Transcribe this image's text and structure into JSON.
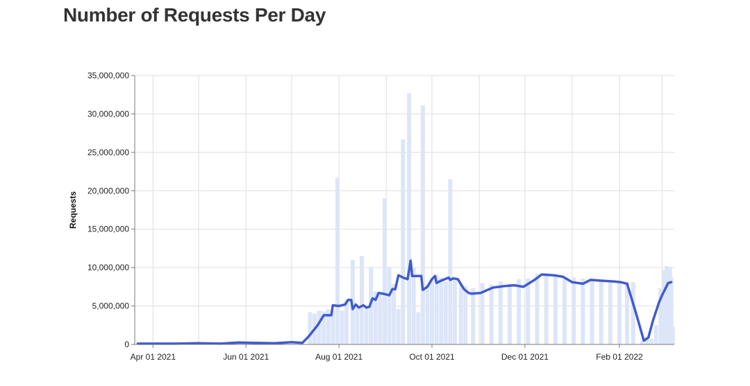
{
  "page": {
    "title": "Number of Requests Per Day"
  },
  "colors": {
    "line": "#3f5bcf",
    "bars": "#dde5f8",
    "grid": "#dddddd",
    "axis": "#777777"
  },
  "chart_data": {
    "type": "bar",
    "title": "Number of Requests Per Day",
    "xlabel": "",
    "ylabel": "Requests",
    "ylim": [
      0,
      35000000
    ],
    "xlim": [
      "2021-03-20",
      "2022-03-09"
    ],
    "y_ticks": [
      0,
      5000000,
      10000000,
      15000000,
      20000000,
      25000000,
      30000000,
      35000000
    ],
    "y_tick_labels": [
      "0",
      "5,000,000",
      "10,000,000",
      "15,000,000",
      "20,000,000",
      "25,000,000",
      "30,000,000",
      "35,000,000"
    ],
    "x_ticks": [
      "2021-04-01",
      "2021-06-01",
      "2021-08-01",
      "2021-10-01",
      "2021-12-01",
      "2022-02-01"
    ],
    "x_tick_labels": [
      "Apr 01 2021",
      "Jun 01 2021",
      "Aug 01 2021",
      "Oct 01 2021",
      "Dec 01 2021",
      "Feb 01 2022"
    ],
    "grid": true,
    "series": [
      {
        "kind": "bar",
        "points": [
          [
            "2021-07-13",
            4200000
          ],
          [
            "2021-07-16",
            4000000
          ],
          [
            "2021-07-19",
            4400000
          ],
          [
            "2021-07-22",
            4300000
          ],
          [
            "2021-07-25",
            4600000
          ],
          [
            "2021-07-28",
            4500000
          ],
          [
            "2021-07-31",
            21700000
          ],
          [
            "2021-08-03",
            4400000
          ],
          [
            "2021-08-06",
            5800000
          ],
          [
            "2021-08-10",
            11000000
          ],
          [
            "2021-08-13",
            4800000
          ],
          [
            "2021-08-16",
            11500000
          ],
          [
            "2021-08-19",
            4700000
          ],
          [
            "2021-08-22",
            10100000
          ],
          [
            "2021-08-25",
            6900000
          ],
          [
            "2021-08-28",
            6500000
          ],
          [
            "2021-08-31",
            19000000
          ],
          [
            "2021-09-03",
            10100000
          ],
          [
            "2021-09-06",
            7900000
          ],
          [
            "2021-09-09",
            4600000
          ],
          [
            "2021-09-12",
            26700000
          ],
          [
            "2021-09-16",
            32700000
          ],
          [
            "2021-09-19",
            10000000
          ],
          [
            "2021-09-22",
            4200000
          ],
          [
            "2021-09-25",
            31100000
          ],
          [
            "2021-09-28",
            7800000
          ],
          [
            "2021-10-01",
            8400000
          ],
          [
            "2021-10-04",
            9100000
          ],
          [
            "2021-10-07",
            8700000
          ],
          [
            "2021-10-10",
            8200000
          ],
          [
            "2021-10-13",
            21500000
          ],
          [
            "2021-10-16",
            8400000
          ],
          [
            "2021-10-20",
            7900000
          ],
          [
            "2021-10-23",
            7600000
          ],
          [
            "2021-10-28",
            7300000
          ],
          [
            "2021-11-03",
            8000000
          ],
          [
            "2021-11-09",
            7800000
          ],
          [
            "2021-11-15",
            8200000
          ],
          [
            "2021-11-21",
            7900000
          ],
          [
            "2021-11-27",
            8500000
          ],
          [
            "2021-12-03",
            8600000
          ],
          [
            "2021-12-09",
            9200000
          ],
          [
            "2021-12-15",
            9300000
          ],
          [
            "2021-12-21",
            9000000
          ],
          [
            "2021-12-27",
            8800000
          ],
          [
            "2022-01-02",
            8700000
          ],
          [
            "2022-01-08",
            8600000
          ],
          [
            "2022-01-14",
            8500000
          ],
          [
            "2022-01-20",
            8400000
          ],
          [
            "2022-01-26",
            8300000
          ],
          [
            "2022-02-01",
            8200000
          ],
          [
            "2022-02-06",
            8100000
          ],
          [
            "2022-02-10",
            8100000
          ],
          [
            "2022-02-16",
            500000
          ],
          [
            "2022-02-19",
            600000
          ],
          [
            "2022-02-22",
            700000
          ],
          [
            "2022-02-25",
            2500000
          ],
          [
            "2022-02-28",
            7300000
          ],
          [
            "2022-03-02",
            9700000
          ],
          [
            "2022-03-04",
            10200000
          ],
          [
            "2022-03-06",
            10100000
          ],
          [
            "2022-03-07",
            8800000
          ],
          [
            "2022-03-08",
            2300000
          ]
        ]
      },
      {
        "kind": "line",
        "points": [
          [
            "2021-03-22",
            100000
          ],
          [
            "2021-04-15",
            100000
          ],
          [
            "2021-05-01",
            150000
          ],
          [
            "2021-05-15",
            100000
          ],
          [
            "2021-05-27",
            250000
          ],
          [
            "2021-06-07",
            200000
          ],
          [
            "2021-06-20",
            150000
          ],
          [
            "2021-07-01",
            300000
          ],
          [
            "2021-07-08",
            200000
          ],
          [
            "2021-07-12",
            1000000
          ],
          [
            "2021-07-18",
            2500000
          ],
          [
            "2021-07-22",
            3800000
          ],
          [
            "2021-07-27",
            3800000
          ],
          [
            "2021-07-28",
            5100000
          ],
          [
            "2021-08-01",
            5000000
          ],
          [
            "2021-08-05",
            5200000
          ],
          [
            "2021-08-07",
            5800000
          ],
          [
            "2021-08-09",
            5800000
          ],
          [
            "2021-08-10",
            4600000
          ],
          [
            "2021-08-12",
            5200000
          ],
          [
            "2021-08-14",
            4800000
          ],
          [
            "2021-08-17",
            5100000
          ],
          [
            "2021-08-19",
            4800000
          ],
          [
            "2021-08-21",
            4900000
          ],
          [
            "2021-08-23",
            6000000
          ],
          [
            "2021-08-25",
            5800000
          ],
          [
            "2021-08-27",
            6700000
          ],
          [
            "2021-08-30",
            6600000
          ],
          [
            "2021-09-03",
            6400000
          ],
          [
            "2021-09-05",
            7200000
          ],
          [
            "2021-09-07",
            7200000
          ],
          [
            "2021-09-09",
            9000000
          ],
          [
            "2021-09-12",
            8700000
          ],
          [
            "2021-09-15",
            8500000
          ],
          [
            "2021-09-17",
            10900000
          ],
          [
            "2021-09-18",
            8900000
          ],
          [
            "2021-09-24",
            8900000
          ],
          [
            "2021-09-25",
            7100000
          ],
          [
            "2021-09-28",
            7500000
          ],
          [
            "2021-10-01",
            8500000
          ],
          [
            "2021-10-03",
            8900000
          ],
          [
            "2021-10-04",
            8000000
          ],
          [
            "2021-10-07",
            8300000
          ],
          [
            "2021-10-12",
            8700000
          ],
          [
            "2021-10-13",
            8400000
          ],
          [
            "2021-10-15",
            8600000
          ],
          [
            "2021-10-18",
            8500000
          ],
          [
            "2021-10-22",
            7200000
          ],
          [
            "2021-10-25",
            6700000
          ],
          [
            "2021-10-27",
            6600000
          ],
          [
            "2021-11-02",
            6700000
          ],
          [
            "2021-11-10",
            7400000
          ],
          [
            "2021-11-18",
            7600000
          ],
          [
            "2021-11-24",
            7700000
          ],
          [
            "2021-11-30",
            7500000
          ],
          [
            "2021-12-08",
            8500000
          ],
          [
            "2021-12-12",
            9100000
          ],
          [
            "2021-12-20",
            9000000
          ],
          [
            "2021-12-26",
            8800000
          ],
          [
            "2022-01-01",
            8100000
          ],
          [
            "2022-01-08",
            7900000
          ],
          [
            "2022-01-13",
            8400000
          ],
          [
            "2022-01-20",
            8300000
          ],
          [
            "2022-01-28",
            8200000
          ],
          [
            "2022-02-02",
            8100000
          ],
          [
            "2022-02-06",
            7900000
          ],
          [
            "2022-02-12",
            4000000
          ],
          [
            "2022-02-17",
            500000
          ],
          [
            "2022-02-20",
            900000
          ],
          [
            "2022-02-23",
            3100000
          ],
          [
            "2022-02-27",
            5500000
          ],
          [
            "2022-03-01",
            6400000
          ],
          [
            "2022-03-05",
            8000000
          ],
          [
            "2022-03-07",
            8100000
          ]
        ]
      }
    ]
  }
}
